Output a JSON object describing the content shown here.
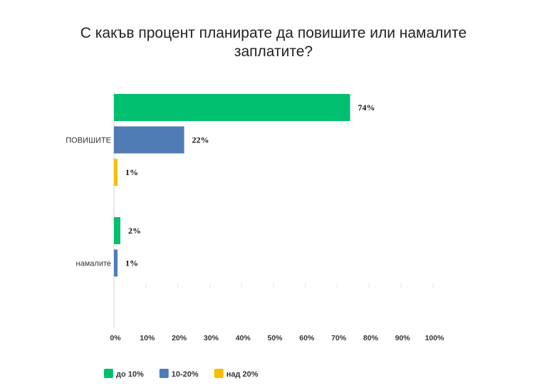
{
  "chart_data": {
    "type": "bar",
    "orientation": "horizontal",
    "title": "С какъв процент планирате да повишите или намалите заплатите?",
    "categories": [
      "повишите",
      "намалите"
    ],
    "category_labels": [
      "ПОВИШИТЕ",
      "намалите"
    ],
    "series": [
      {
        "name": "до 10%",
        "color": "#00bf6f",
        "values": [
          74,
          2
        ],
        "labels": [
          "74%",
          "2%"
        ]
      },
      {
        "name": "10-20%",
        "color": "#507cb6",
        "values": [
          22,
          1
        ],
        "labels": [
          "22%",
          "1%"
        ]
      },
      {
        "name": "над 20%",
        "color": "#f6c000",
        "values": [
          1,
          null
        ],
        "labels": [
          "1%",
          ""
        ]
      }
    ],
    "xlim": [
      0,
      100
    ],
    "xticks": [
      "0%",
      "10%",
      "20%",
      "30%",
      "40%",
      "50%",
      "60%",
      "70%",
      "80%",
      "90%",
      "100%"
    ],
    "grid": true,
    "legend": "bottom-left"
  }
}
